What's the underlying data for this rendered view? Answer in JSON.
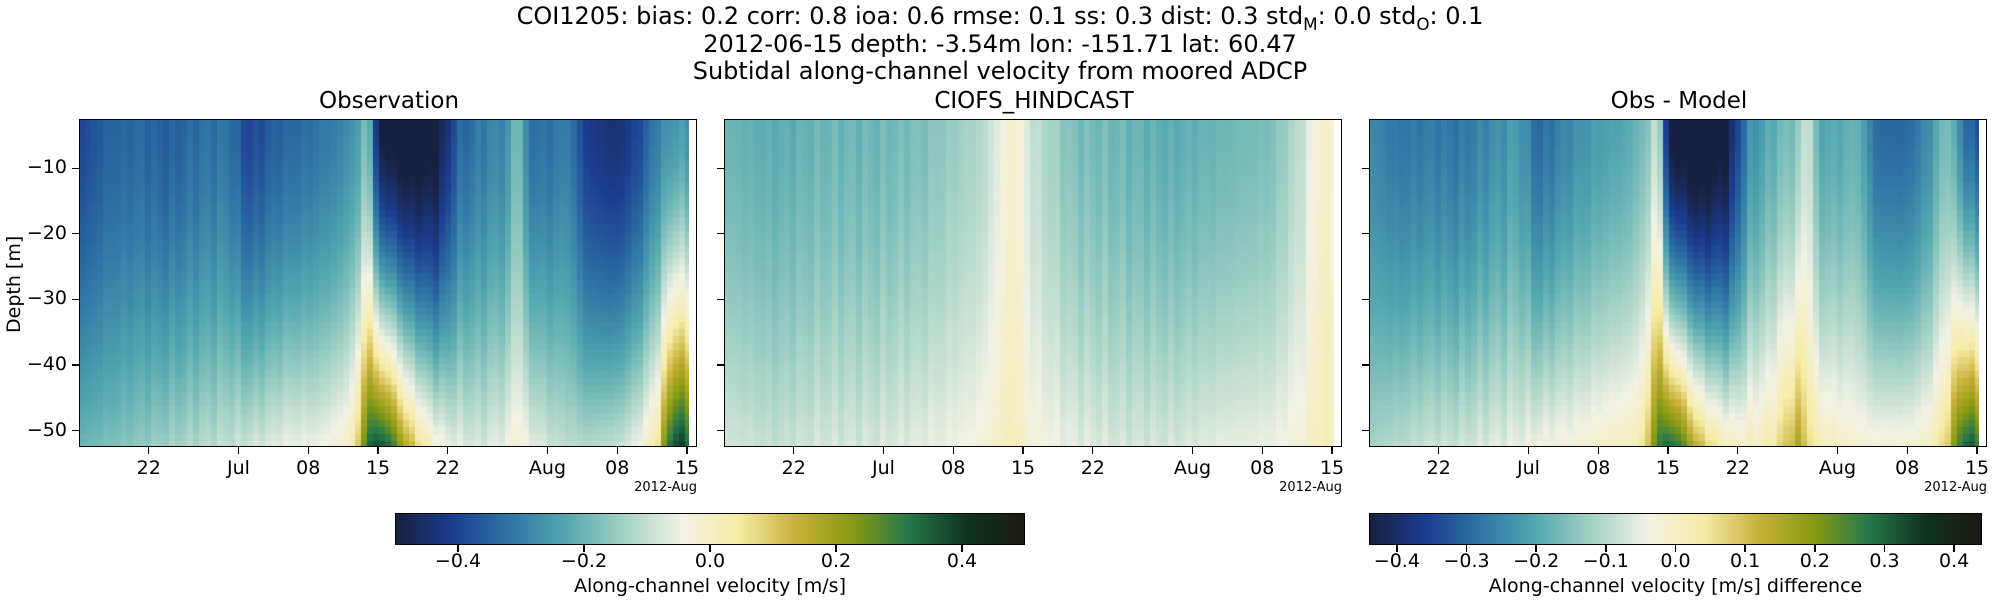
{
  "titles": {
    "line1": "COI1205: bias: 0.2  corr: 0.8  ioa: 0.6  rmse: 0.1  ss: 0.3  dist: 0.3  std",
    "line1_sub_m": "M",
    "line1_mid": ": 0.0  std",
    "line1_sub_o": "O",
    "line1_end": ": 0.1",
    "line2": "2012-06-15 depth: -3.54m lon: -151.71 lat: 60.47",
    "line3": "Subtidal along-channel velocity from moored ADCP"
  },
  "panels": [
    {
      "title": "Observation"
    },
    {
      "title": "CIOFS_HINDCAST"
    },
    {
      "title": "Obs - Model"
    }
  ],
  "axes": {
    "ylabel": "Depth [m]",
    "yticks": [
      "−10",
      "−20",
      "−30",
      "−40",
      "−50"
    ],
    "ytick_values": [
      -10,
      -20,
      -30,
      -40,
      -50
    ],
    "xticks": [
      "22",
      "Jul",
      "08",
      "15",
      "22",
      "Aug",
      "08",
      "15"
    ],
    "xtick_days": [
      7,
      16,
      23,
      30,
      37,
      47,
      54,
      61
    ],
    "x_offset_label": "2012-Aug"
  },
  "colorbars": [
    {
      "label": "Along-channel velocity [m/s]",
      "ticks": [
        "−0.4",
        "−0.2",
        "0.0",
        "0.2",
        "0.4"
      ],
      "tick_values": [
        -0.4,
        -0.2,
        0.0,
        0.2,
        0.4
      ],
      "range": [
        -0.5,
        0.5
      ]
    },
    {
      "label": "Along-channel velocity [m/s] difference",
      "ticks": [
        "−0.4",
        "−0.3",
        "−0.2",
        "−0.1",
        "0.0",
        "0.1",
        "0.2",
        "0.3",
        "0.4"
      ],
      "tick_values": [
        -0.4,
        -0.3,
        -0.2,
        -0.1,
        0.0,
        0.1,
        0.2,
        0.3,
        0.4
      ],
      "range": [
        -0.44,
        0.44
      ]
    }
  ],
  "colormap": [
    "#18203f",
    "#1c3d91",
    "#2f76a6",
    "#55a9b0",
    "#a5d3c6",
    "#f2f2e5",
    "#f7eca6",
    "#c7b23b",
    "#889a12",
    "#23784a",
    "#0f3220",
    "#1b1a14"
  ],
  "chart_data": {
    "type": "heatmap",
    "x_start": "2012-06-15",
    "xlim_days": [
      0,
      62
    ],
    "ylim": [
      -52.5,
      -2.5
    ],
    "fields": [
      {
        "panel": "Observation",
        "units": "m/s",
        "surface_profile": [
          [
            0,
            -0.4
          ],
          [
            3,
            -0.35
          ],
          [
            6,
            -0.34
          ],
          [
            9,
            -0.36
          ],
          [
            12,
            -0.33
          ],
          [
            15,
            -0.32
          ],
          [
            17,
            -0.4
          ],
          [
            20,
            -0.35
          ],
          [
            23,
            -0.33
          ],
          [
            26,
            -0.3
          ],
          [
            28,
            -0.25
          ],
          [
            29,
            -0.15
          ],
          [
            30,
            -0.5
          ],
          [
            33,
            -0.55
          ],
          [
            36,
            -0.52
          ],
          [
            38,
            -0.35
          ],
          [
            41,
            -0.3
          ],
          [
            43,
            -0.28
          ],
          [
            44,
            -0.15
          ],
          [
            45,
            -0.32
          ],
          [
            47,
            -0.33
          ],
          [
            49,
            -0.3
          ],
          [
            51,
            -0.42
          ],
          [
            54,
            -0.45
          ],
          [
            56,
            -0.4
          ],
          [
            58,
            -0.3
          ],
          [
            60,
            -0.25
          ],
          [
            62,
            -0.28
          ]
        ],
        "bottom_profile": [
          [
            0,
            -0.2
          ],
          [
            3,
            -0.18
          ],
          [
            6,
            -0.16
          ],
          [
            9,
            -0.14
          ],
          [
            12,
            -0.12
          ],
          [
            15,
            -0.1
          ],
          [
            18,
            -0.08
          ],
          [
            21,
            -0.05
          ],
          [
            24,
            -0.05
          ],
          [
            27,
            0.0
          ],
          [
            28,
            0.1
          ],
          [
            29,
            0.35
          ],
          [
            30,
            0.38
          ],
          [
            31,
            0.35
          ],
          [
            32,
            0.25
          ],
          [
            33,
            0.15
          ],
          [
            35,
            0.02
          ],
          [
            37,
            -0.05
          ],
          [
            40,
            -0.08
          ],
          [
            43,
            -0.05
          ],
          [
            44,
            0.0
          ],
          [
            45,
            -0.05
          ],
          [
            48,
            -0.1
          ],
          [
            51,
            -0.12
          ],
          [
            54,
            -0.1
          ],
          [
            56,
            -0.05
          ],
          [
            58,
            0.05
          ],
          [
            59,
            0.3
          ],
          [
            60,
            0.4
          ],
          [
            61,
            0.38
          ],
          [
            62,
            0.1
          ]
        ]
      },
      {
        "panel": "CIOFS_HINDCAST",
        "units": "m/s",
        "surface_profile": [
          [
            0,
            -0.2
          ],
          [
            5,
            -0.22
          ],
          [
            10,
            -0.2
          ],
          [
            15,
            -0.2
          ],
          [
            20,
            -0.18
          ],
          [
            23,
            -0.15
          ],
          [
            26,
            -0.12
          ],
          [
            29,
            0.0
          ],
          [
            31,
            -0.1
          ],
          [
            35,
            -0.18
          ],
          [
            40,
            -0.2
          ],
          [
            45,
            -0.22
          ],
          [
            50,
            -0.2
          ],
          [
            55,
            -0.18
          ],
          [
            58,
            -0.1
          ],
          [
            60,
            0.0
          ],
          [
            62,
            -0.05
          ]
        ],
        "bottom_profile": [
          [
            0,
            -0.08
          ],
          [
            5,
            -0.1
          ],
          [
            10,
            -0.08
          ],
          [
            15,
            -0.08
          ],
          [
            20,
            -0.06
          ],
          [
            25,
            -0.04
          ],
          [
            29,
            0.02
          ],
          [
            31,
            -0.03
          ],
          [
            35,
            -0.06
          ],
          [
            40,
            -0.08
          ],
          [
            45,
            -0.08
          ],
          [
            50,
            -0.06
          ],
          [
            55,
            -0.05
          ],
          [
            58,
            -0.02
          ],
          [
            60,
            0.02
          ],
          [
            62,
            0.0
          ]
        ]
      },
      {
        "panel": "Obs - Model",
        "units": "m/s",
        "surface_profile": [
          [
            0,
            -0.25
          ],
          [
            3,
            -0.28
          ],
          [
            6,
            -0.27
          ],
          [
            9,
            -0.28
          ],
          [
            12,
            -0.25
          ],
          [
            15,
            -0.22
          ],
          [
            17,
            -0.3
          ],
          [
            20,
            -0.25
          ],
          [
            23,
            -0.22
          ],
          [
            26,
            -0.2
          ],
          [
            28,
            -0.15
          ],
          [
            29,
            -0.05
          ],
          [
            30,
            -0.45
          ],
          [
            33,
            -0.5
          ],
          [
            36,
            -0.45
          ],
          [
            38,
            -0.25
          ],
          [
            41,
            -0.18
          ],
          [
            43,
            -0.15
          ],
          [
            44,
            -0.05
          ],
          [
            45,
            -0.2
          ],
          [
            47,
            -0.2
          ],
          [
            49,
            -0.18
          ],
          [
            51,
            -0.3
          ],
          [
            54,
            -0.3
          ],
          [
            56,
            -0.25
          ],
          [
            58,
            -0.15
          ],
          [
            60,
            -0.3
          ],
          [
            62,
            -0.35
          ]
        ],
        "bottom_profile": [
          [
            0,
            -0.12
          ],
          [
            3,
            -0.1
          ],
          [
            6,
            -0.08
          ],
          [
            9,
            -0.08
          ],
          [
            12,
            -0.06
          ],
          [
            15,
            -0.05
          ],
          [
            18,
            -0.03
          ],
          [
            21,
            -0.02
          ],
          [
            24,
            0.0
          ],
          [
            27,
            0.02
          ],
          [
            28,
            0.1
          ],
          [
            29,
            0.28
          ],
          [
            30,
            0.3
          ],
          [
            31,
            0.28
          ],
          [
            32,
            0.2
          ],
          [
            33,
            0.12
          ],
          [
            35,
            0.04
          ],
          [
            37,
            0.0
          ],
          [
            40,
            0.02
          ],
          [
            42,
            0.1
          ],
          [
            43,
            0.15
          ],
          [
            44,
            0.08
          ],
          [
            45,
            0.02
          ],
          [
            47,
            0.0
          ],
          [
            50,
            -0.02
          ],
          [
            54,
            -0.02
          ],
          [
            56,
            0.0
          ],
          [
            58,
            0.08
          ],
          [
            59,
            0.25
          ],
          [
            60,
            0.32
          ],
          [
            61,
            0.3
          ],
          [
            62,
            0.1
          ]
        ]
      }
    ]
  }
}
